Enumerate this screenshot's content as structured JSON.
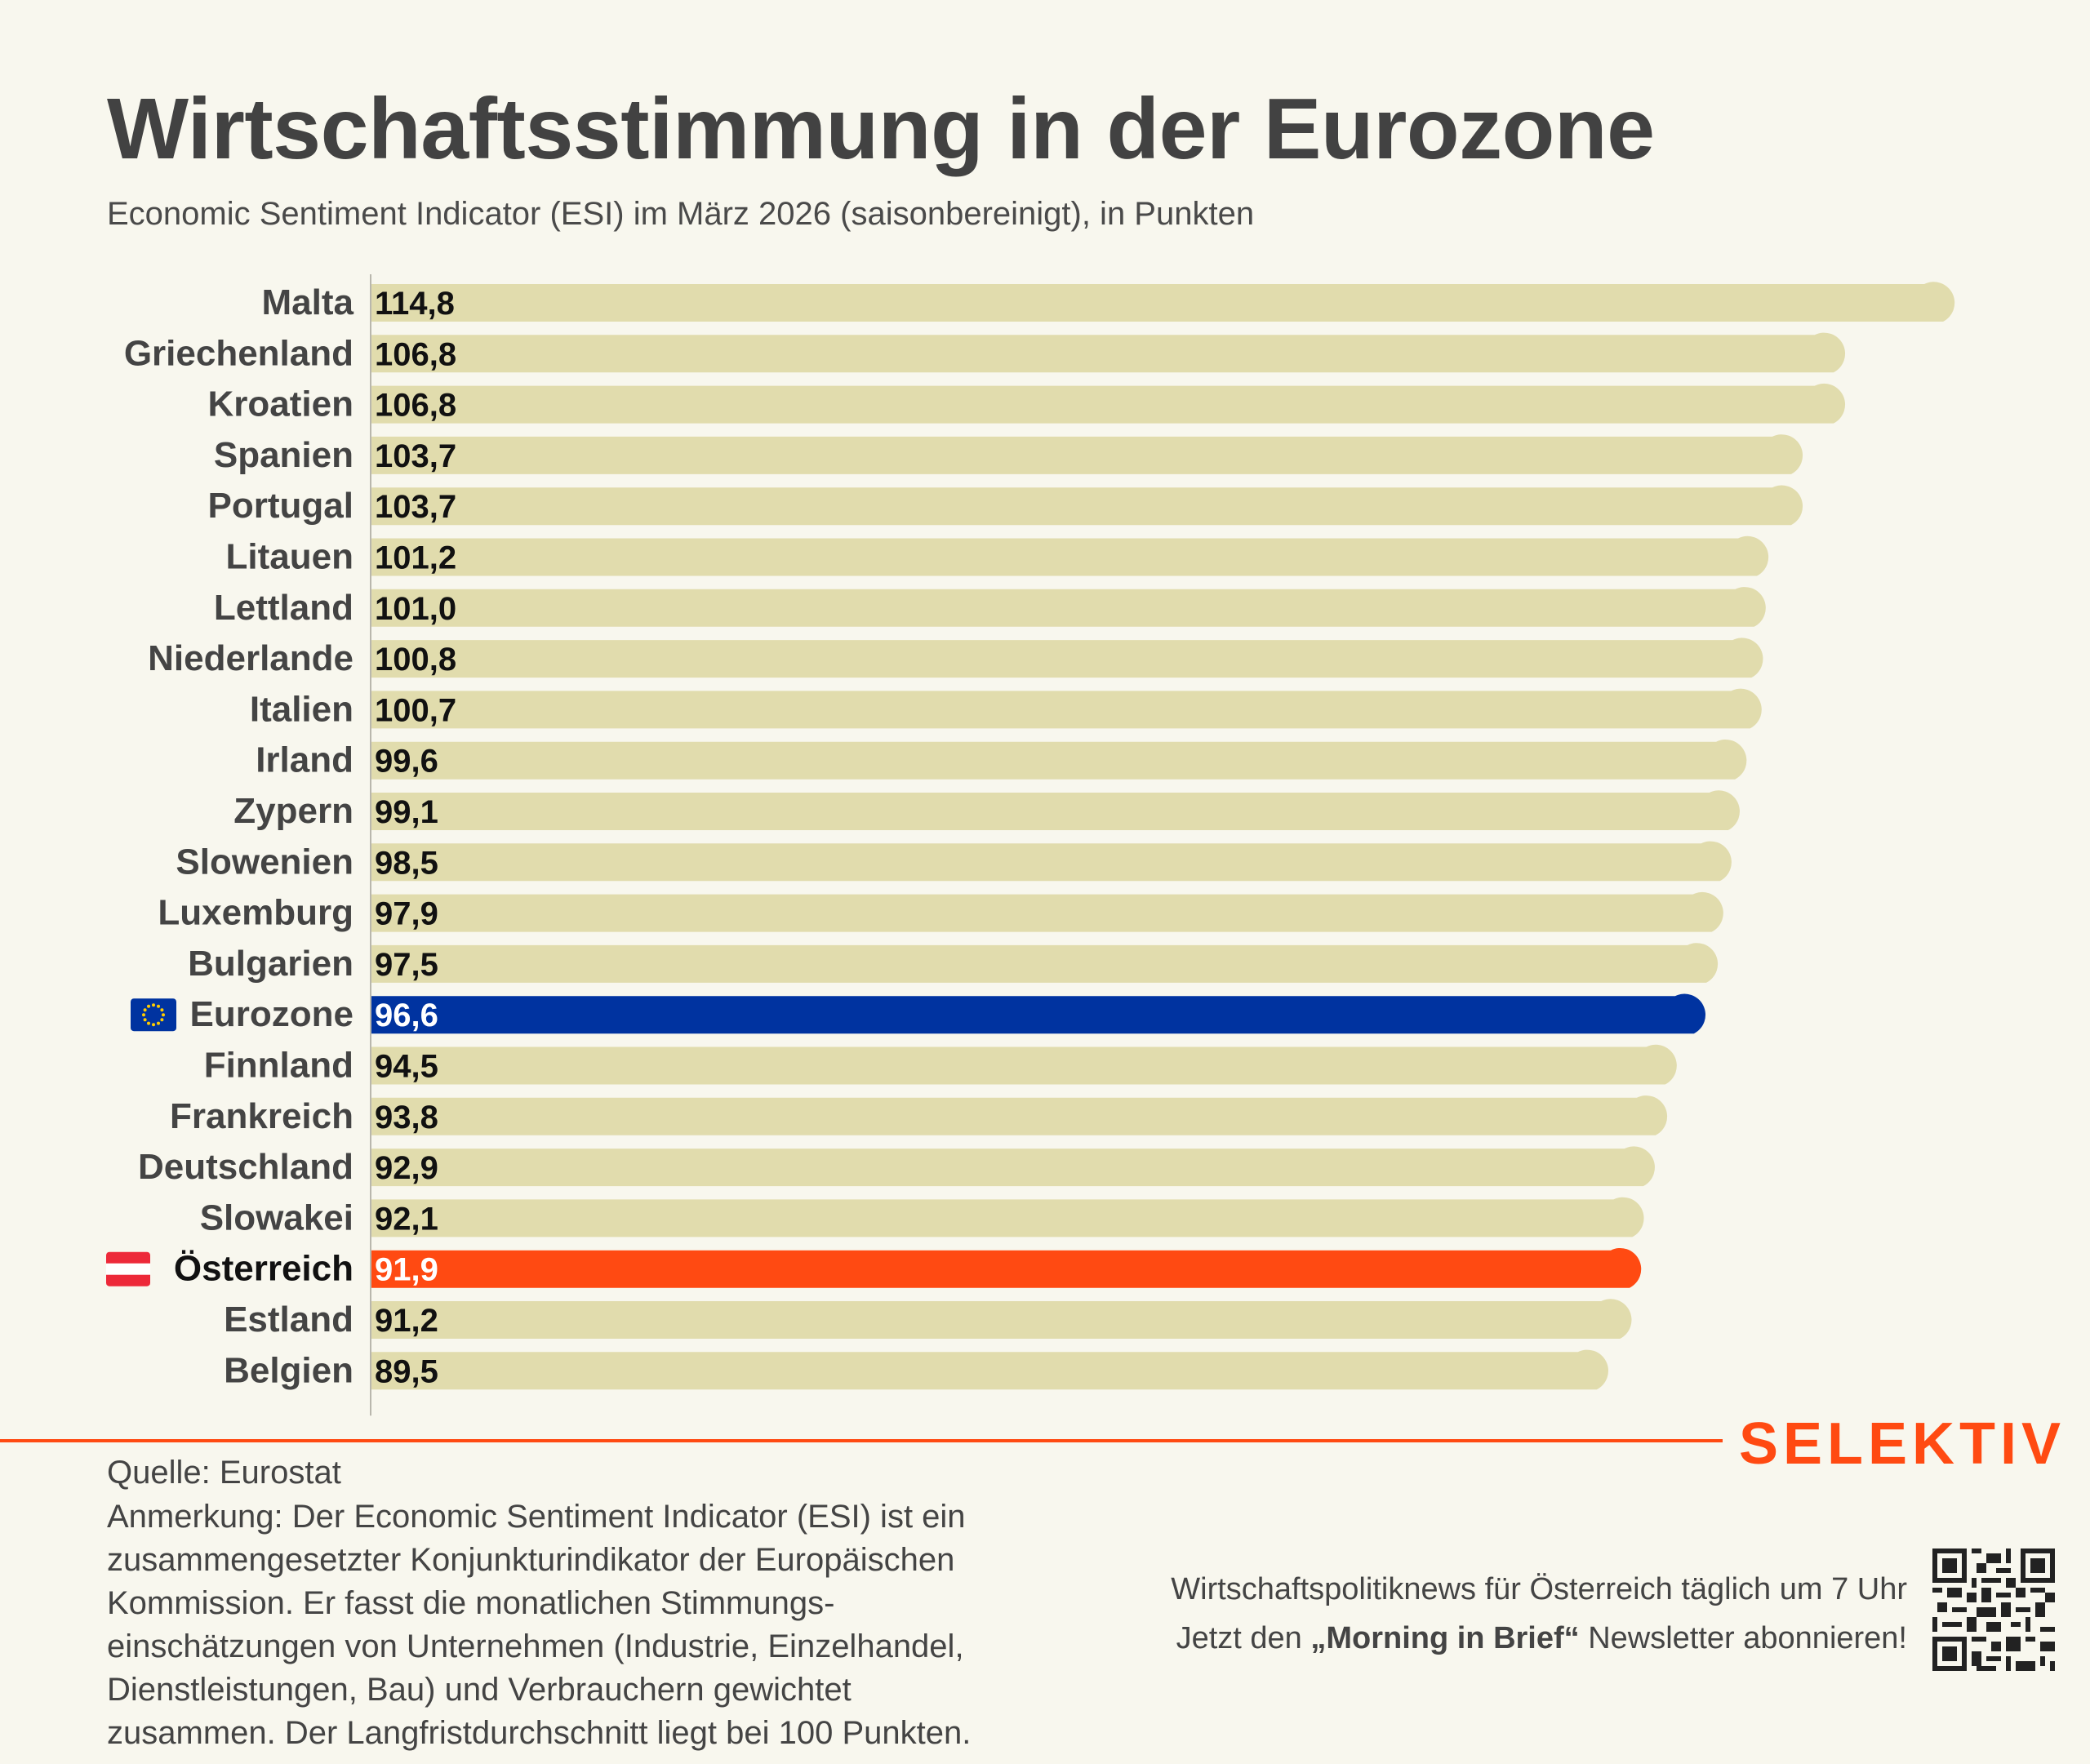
{
  "header": {
    "title": "Wirtschaftsstimmung in der Eurozone",
    "subtitle": "Economic Sentiment Indicator (ESI) im März 2026 (saisonbereinigt), in Punkten"
  },
  "colors": {
    "bar_default": "#e1dcad",
    "bar_eurozone": "#0033a0",
    "bar_austria": "#ff4a12",
    "brand": "#ff4a12",
    "background": "#f8f7ee"
  },
  "chart_data": {
    "type": "bar",
    "orientation": "horizontal",
    "title": "Wirtschaftsstimmung in der Eurozone",
    "subtitle": "Economic Sentiment Indicator (ESI) im März 2026 (saisonbereinigt), in Punkten",
    "xlabel": "",
    "ylabel": "",
    "xlim": [
      0,
      114.8
    ],
    "grid": false,
    "categories": [
      "Malta",
      "Griechenland",
      "Kroatien",
      "Spanien",
      "Portugal",
      "Litauen",
      "Lettland",
      "Niederlande",
      "Italien",
      "Irland",
      "Zypern",
      "Slowenien",
      "Luxemburg",
      "Bulgarien",
      "Eurozone",
      "Finnland",
      "Frankreich",
      "Deutschland",
      "Slowakei",
      "Österreich",
      "Estland",
      "Belgien"
    ],
    "values": [
      114.8,
      106.8,
      106.8,
      103.7,
      103.7,
      101.2,
      101.0,
      100.8,
      100.7,
      99.6,
      99.1,
      98.5,
      97.9,
      97.5,
      96.6,
      94.5,
      93.8,
      92.9,
      92.1,
      91.9,
      91.2,
      89.5
    ],
    "value_labels": [
      "114,8",
      "106,8",
      "106,8",
      "103,7",
      "103,7",
      "101,2",
      "101,0",
      "100,8",
      "100,7",
      "99,6",
      "99,1",
      "98,5",
      "97,9",
      "97,5",
      "96,6",
      "94,5",
      "93,8",
      "92,9",
      "92,1",
      "91,9",
      "91,2",
      "89,5"
    ],
    "highlights": {
      "Eurozone": "eu-flag",
      "Österreich": "austria-flag"
    }
  },
  "footer": {
    "brand": "SELEKTIV",
    "source": "Quelle: Eurostat",
    "note_lines": [
      "Anmerkung: Der Economic Sentiment Indicator (ESI) ist ein",
      "zusammengesetzter Konjunkturindikator der Europäischen",
      "Kommission. Er fasst die monatlichen Stimmungs-",
      "einschätzungen von Unternehmen (Industrie, Einzelhandel,",
      "Dienstleistungen, Bau) und Verbrauchern gewichtet",
      "zusammen. Der Langfristdurchschnitt liegt bei 100 Punkten."
    ],
    "promo_line1": "Wirtschaftspolitiknews für Österreich täglich um 7 Uhr",
    "promo_pre": "Jetzt den ",
    "promo_bold": "„Morning in Brief“",
    "promo_post": " Newsletter abonnieren!",
    "qr_icon": "qr-code-icon"
  }
}
